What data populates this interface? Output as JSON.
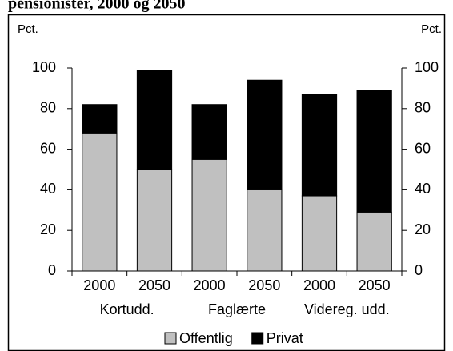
{
  "chart_data": {
    "type": "stacked_bar",
    "title": "pensionister, 2000 og 2050",
    "y_unit_left": "Pct.",
    "y_unit_right": "Pct.",
    "categories": [
      "2000",
      "2050",
      "2000",
      "2050",
      "2000",
      "2050"
    ],
    "groups": [
      "Kortudd.",
      "Faglærte",
      "Videreg. udd."
    ],
    "series": [
      {
        "name": "Offentlig",
        "color": "#c0c0c0",
        "values": [
          68,
          50,
          55,
          40,
          37,
          29
        ]
      },
      {
        "name": "Privat",
        "color": "#000000",
        "values": [
          14,
          49,
          27,
          54,
          50,
          60
        ]
      }
    ],
    "ylim": [
      0,
      100
    ],
    "yticks": [
      0,
      20,
      40,
      60,
      80,
      100
    ],
    "y2lim": [
      0,
      100
    ],
    "y2ticks": [
      0,
      20,
      40,
      60,
      80,
      100
    ]
  }
}
